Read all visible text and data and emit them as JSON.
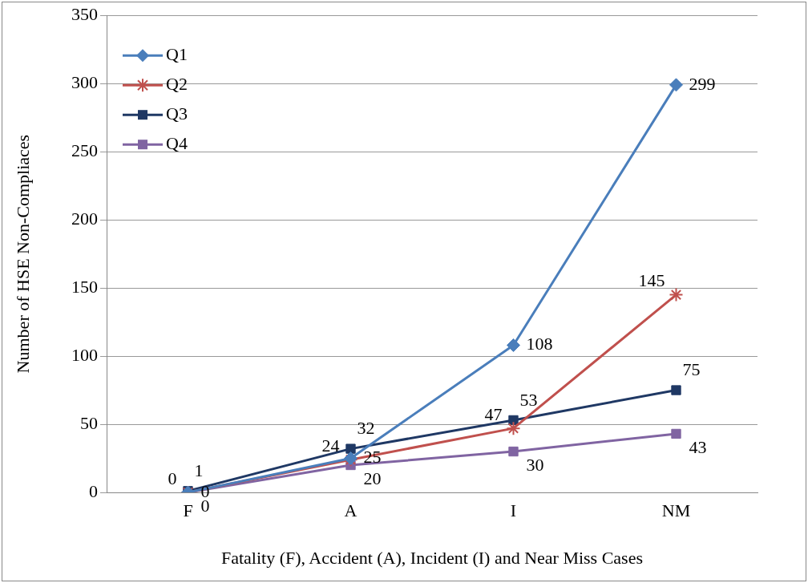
{
  "chart_data": {
    "type": "line",
    "xlabel": "Fatality (F), Accident (A), Incident (I) and Near Miss Cases",
    "ylabel": "Number of HSE Non-Compliaces",
    "categories": [
      "F",
      "A",
      "I",
      "NM"
    ],
    "series": [
      {
        "name": "Q1",
        "color": "#4a7ebb",
        "marker": "diamond",
        "values": [
          0,
          25,
          108,
          299
        ]
      },
      {
        "name": "Q2",
        "color": "#c0504d",
        "marker": "cross",
        "values": [
          0,
          24,
          47,
          145
        ]
      },
      {
        "name": "Q3",
        "color": "#1f3864",
        "marker": "square",
        "values": [
          1,
          32,
          53,
          75
        ]
      },
      {
        "name": "Q4",
        "color": "#8064a2",
        "marker": "square",
        "values": [
          0,
          20,
          30,
          43
        ]
      }
    ],
    "ylim": [
      0,
      350
    ],
    "yticks": [
      0,
      50,
      100,
      150,
      200,
      250,
      300,
      350
    ],
    "grid": "y",
    "legend": "top left",
    "data_labels": true
  }
}
